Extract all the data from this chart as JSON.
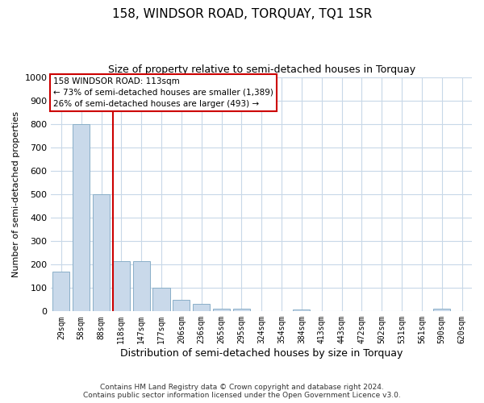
{
  "title": "158, WINDSOR ROAD, TORQUAY, TQ1 1SR",
  "subtitle": "Size of property relative to semi-detached houses in Torquay",
  "xlabel": "Distribution of semi-detached houses by size in Torquay",
  "ylabel": "Number of semi-detached properties",
  "categories": [
    "29sqm",
    "58sqm",
    "88sqm",
    "118sqm",
    "147sqm",
    "177sqm",
    "206sqm",
    "236sqm",
    "265sqm",
    "295sqm",
    "324sqm",
    "354sqm",
    "384sqm",
    "413sqm",
    "443sqm",
    "472sqm",
    "502sqm",
    "531sqm",
    "561sqm",
    "590sqm",
    "620sqm"
  ],
  "values": [
    170,
    800,
    500,
    215,
    215,
    100,
    50,
    32,
    12,
    10,
    0,
    0,
    7,
    0,
    0,
    0,
    0,
    0,
    0,
    10,
    0
  ],
  "bar_color": "#c9d9ea",
  "bar_edge_color": "#8aafc8",
  "vline_color": "#cc0000",
  "vline_index": 3,
  "ylim": [
    0,
    1000
  ],
  "yticks": [
    0,
    100,
    200,
    300,
    400,
    500,
    600,
    700,
    800,
    900,
    1000
  ],
  "annotation_title": "158 WINDSOR ROAD: 113sqm",
  "annotation_line1": "← 73% of semi-detached houses are smaller (1,389)",
  "annotation_line2": "26% of semi-detached houses are larger (493) →",
  "annotation_box_facecolor": "white",
  "annotation_box_edgecolor": "#cc0000",
  "footer1": "Contains HM Land Registry data © Crown copyright and database right 2024.",
  "footer2": "Contains public sector information licensed under the Open Government Licence v3.0.",
  "bg_color": "#ffffff",
  "grid_color": "#c8d8e8",
  "title_fontsize": 11,
  "subtitle_fontsize": 9,
  "ylabel_fontsize": 8,
  "xlabel_fontsize": 9
}
